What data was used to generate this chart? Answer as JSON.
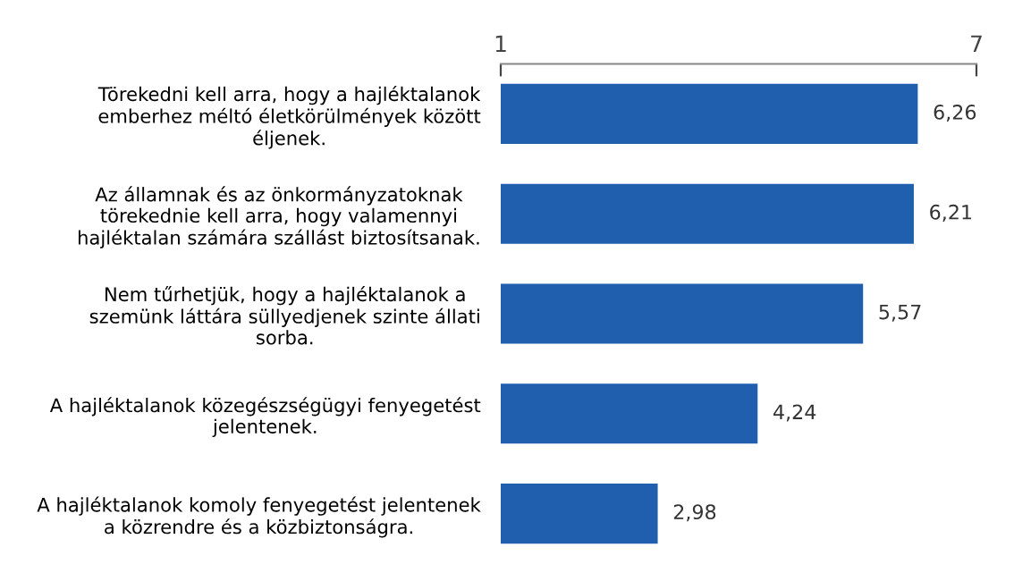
{
  "chart_data": {
    "type": "bar",
    "orientation": "horizontal",
    "categories": [
      "Törekedni kell arra, hogy a hajléktalanok\nemberhez méltó életkörülmények között\néljenek.",
      "Az államnak és az önkormányzatoknak\ntörekednie kell arra, hogy valamennyi\nhajléktalan számára szállást biztosítsanak.",
      "Nem tűrhetjük, hogy a hajléktalanok a\nszemünk láttára süllyedjenek szinte állati\nsorba.",
      "A hajléktalanok közegészségügyi fenyegetést\njelentenek.",
      "A hajléktalanok komoly fenyegetést jelentenek\na közrendre és a közbiztonságra."
    ],
    "values": [
      6.26,
      6.21,
      5.57,
      4.24,
      2.98
    ],
    "value_labels": [
      "6,26",
      "6,21",
      "5,57",
      "4,24",
      "2,98"
    ],
    "color": "#1f5fae",
    "xlim": [
      1,
      7
    ],
    "xticks": [
      1,
      7
    ],
    "grid": false,
    "legend": false
  }
}
